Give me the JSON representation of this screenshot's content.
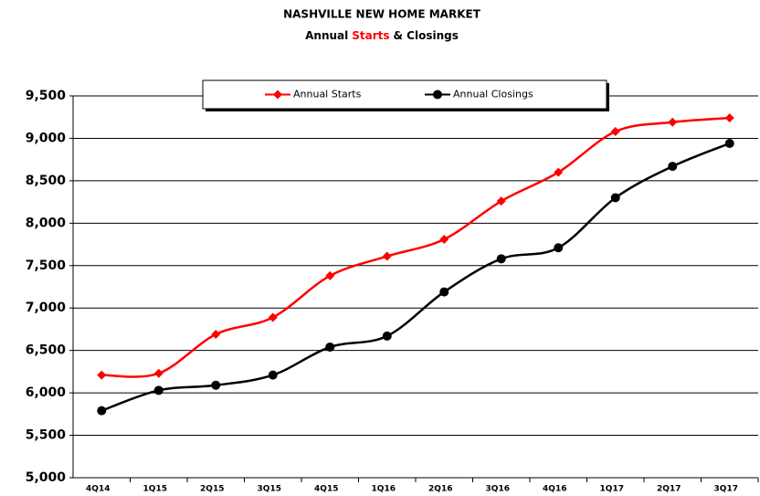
{
  "chart_data": {
    "type": "line",
    "title": "NASHVILLE NEW HOME MARKET",
    "subtitle": [
      "Annual",
      "Starts",
      "& Closings"
    ],
    "categories": [
      "4Q14",
      "1Q15",
      "2Q15",
      "3Q15",
      "4Q15",
      "1Q16",
      "2Q16",
      "3Q16",
      "4Q16",
      "1Q17",
      "2Q17",
      "3Q17"
    ],
    "series": [
      {
        "name": "Annual Starts",
        "color": "#ff0000",
        "marker": "diamond",
        "values": [
          6210,
          6230,
          6690,
          6890,
          7380,
          7610,
          7810,
          8260,
          8600,
          9080,
          9190,
          9240
        ]
      },
      {
        "name": "Annual Closings",
        "color": "#000000",
        "marker": "circle",
        "values": [
          5790,
          6030,
          6090,
          6210,
          6540,
          6670,
          7190,
          7580,
          7710,
          8300,
          8670,
          8940
        ]
      }
    ],
    "ylim": [
      5000,
      9500
    ],
    "yticks": [
      {
        "value": 5000,
        "label": "5,000"
      },
      {
        "value": 5500,
        "label": "5,500"
      },
      {
        "value": 6000,
        "label": "6,000"
      },
      {
        "value": 6500,
        "label": "6,500"
      },
      {
        "value": 7000,
        "label": "7,000"
      },
      {
        "value": 7500,
        "label": "7,500"
      },
      {
        "value": 8000,
        "label": "8,000"
      },
      {
        "value": 8500,
        "label": "8,500"
      },
      {
        "value": 9000,
        "label": "9,000"
      },
      {
        "value": 9500,
        "label": "9,500"
      }
    ],
    "grid": true,
    "legend": "top"
  }
}
